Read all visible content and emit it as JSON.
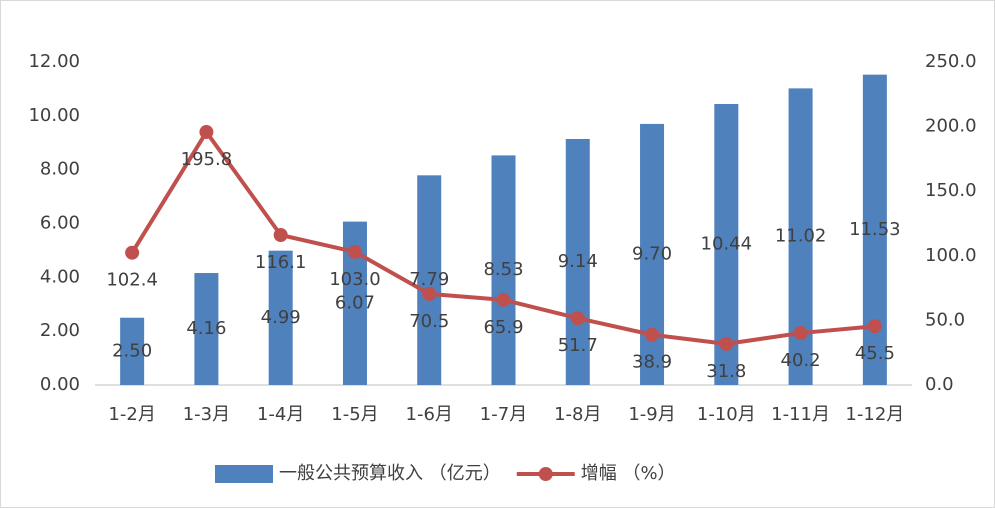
{
  "chart_data": {
    "type": "bar",
    "categories": [
      "1-2月",
      "1-3月",
      "1-4月",
      "1-5月",
      "1-6月",
      "1-7月",
      "1-8月",
      "1-9月",
      "1-10月",
      "1-11月",
      "1-12月"
    ],
    "series": [
      {
        "name": "一般公共预算收入 （亿元）",
        "type": "bar",
        "color": "#4f81bd",
        "values": [
          2.5,
          4.16,
          4.99,
          6.07,
          7.79,
          8.53,
          9.14,
          9.7,
          10.44,
          11.02,
          11.53
        ],
        "value_labels": [
          "2.50",
          "4.16",
          "4.99",
          "6.07",
          "7.79",
          "8.53",
          "9.14",
          "9.70",
          "10.44",
          "11.02",
          "11.53"
        ]
      },
      {
        "name": "增幅 （%）",
        "type": "line",
        "axis": "y2",
        "color": "#c0504d",
        "values": [
          102.4,
          195.8,
          116.1,
          103.0,
          70.5,
          65.9,
          51.7,
          38.9,
          31.8,
          40.2,
          45.5
        ],
        "value_labels": [
          "102.4",
          "195.8",
          "116.1",
          "103.0",
          "70.5",
          "65.9",
          "51.7",
          "38.9",
          "31.8",
          "40.2",
          "45.5"
        ]
      }
    ],
    "ylim": [
      0,
      12
    ],
    "yticks": [
      {
        "value": 0,
        "label": "0.00"
      },
      {
        "value": 2,
        "label": "2.00"
      },
      {
        "value": 4,
        "label": "4.00"
      },
      {
        "value": 6,
        "label": "6.00"
      },
      {
        "value": 8,
        "label": "8.00"
      },
      {
        "value": 10,
        "label": "10.00"
      },
      {
        "value": 12,
        "label": "12.00"
      }
    ],
    "y2lim": [
      0,
      250
    ],
    "y2ticks": [
      {
        "value": 0,
        "label": "0.0"
      },
      {
        "value": 50,
        "label": "50.0"
      },
      {
        "value": 100,
        "label": "100.0"
      },
      {
        "value": 150,
        "label": "150.0"
      },
      {
        "value": 200,
        "label": "200.0"
      },
      {
        "value": 250,
        "label": "250.0"
      }
    ],
    "grid": false,
    "legend": "bottom"
  }
}
